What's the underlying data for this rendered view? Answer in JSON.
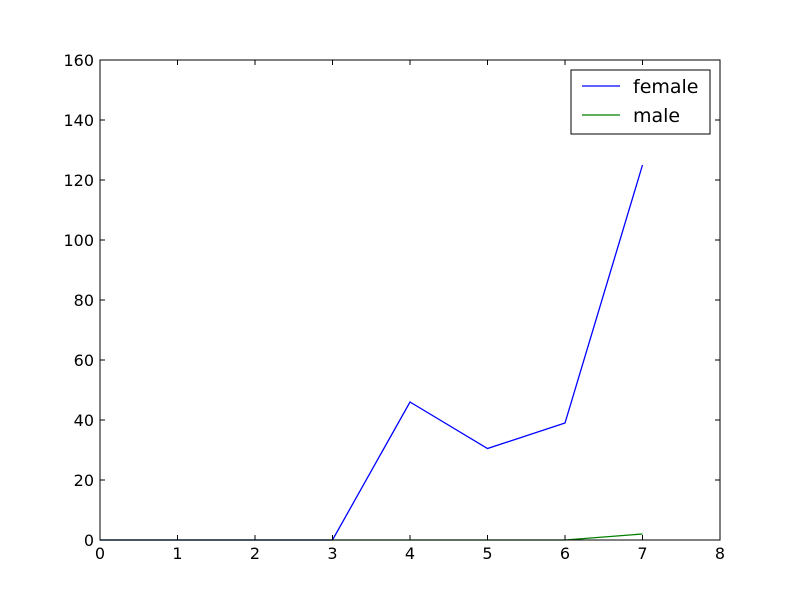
{
  "chart_data": {
    "type": "line",
    "title": "",
    "xlabel": "",
    "ylabel": "",
    "xlim": [
      0,
      8
    ],
    "ylim": [
      0,
      160
    ],
    "xticks": [
      0,
      1,
      2,
      3,
      4,
      5,
      6,
      7,
      8
    ],
    "yticks": [
      0,
      20,
      40,
      60,
      80,
      100,
      120,
      140,
      160
    ],
    "grid": false,
    "legend_position": "top-right",
    "series": [
      {
        "name": "female",
        "color": "#0000ff",
        "x": [
          0,
          1,
          2,
          3,
          4,
          5,
          6,
          7
        ],
        "y": [
          0,
          0,
          0,
          0,
          46,
          30.5,
          39,
          125
        ]
      },
      {
        "name": "male",
        "color": "#008000",
        "x": [
          0,
          1,
          2,
          3,
          4,
          5,
          6,
          7
        ],
        "y": [
          0,
          0,
          0,
          0,
          0,
          0,
          0,
          2
        ]
      }
    ]
  }
}
